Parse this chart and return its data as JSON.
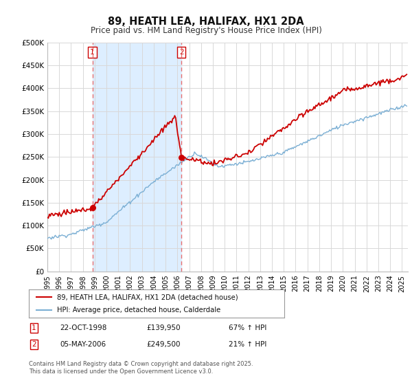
{
  "title": "89, HEATH LEA, HALIFAX, HX1 2DA",
  "subtitle": "Price paid vs. HM Land Registry's House Price Index (HPI)",
  "ylim": [
    0,
    500000
  ],
  "yticks": [
    0,
    50000,
    100000,
    150000,
    200000,
    250000,
    300000,
    350000,
    400000,
    450000,
    500000
  ],
  "ytick_labels": [
    "£0",
    "£50K",
    "£100K",
    "£150K",
    "£200K",
    "£250K",
    "£300K",
    "£350K",
    "£400K",
    "£450K",
    "£500K"
  ],
  "xlim_start": 1995.0,
  "xlim_end": 2025.5,
  "purchase1_x": 1998.81,
  "purchase1_y": 139950,
  "purchase2_x": 2006.34,
  "purchase2_y": 249500,
  "purchase1_date": "22-OCT-1998",
  "purchase1_price": "£139,950",
  "purchase1_hpi": "67% ↑ HPI",
  "purchase2_date": "05-MAY-2006",
  "purchase2_price": "£249,500",
  "purchase2_hpi": "21% ↑ HPI",
  "legend_label1": "89, HEATH LEA, HALIFAX, HX1 2DA (detached house)",
  "legend_label2": "HPI: Average price, detached house, Calderdale",
  "footer": "Contains HM Land Registry data © Crown copyright and database right 2025.\nThis data is licensed under the Open Government Licence v3.0.",
  "line1_color": "#cc0000",
  "line2_color": "#7bafd4",
  "shade_color": "#ddeeff",
  "background_color": "#ffffff",
  "grid_color": "#d8d8d8",
  "vline_color": "#e87070"
}
